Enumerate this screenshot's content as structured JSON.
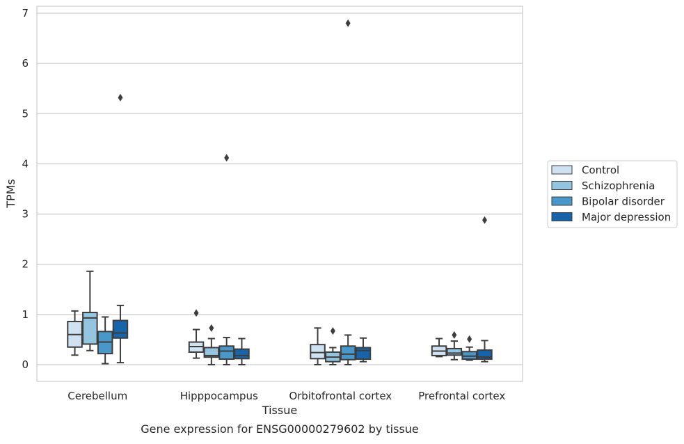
{
  "chart_data": {
    "type": "box",
    "title": "",
    "caption": "Gene expression for ENSG00000279602 by tissue",
    "xlabel": "Tissue",
    "ylabel": "TPMs",
    "ylim": [
      -0.32,
      7.15
    ],
    "yticks": [
      0,
      1,
      2,
      3,
      4,
      5,
      6,
      7
    ],
    "grid": true,
    "legend_position": "right",
    "categories": [
      "Cerebellum",
      "Hipppocampus",
      "Orbitofrontal cortex",
      "Prefrontal cortex"
    ],
    "series": [
      {
        "name": "Control",
        "color": "#d0e1f2",
        "boxes": [
          {
            "whislo": 0.19,
            "q1": 0.35,
            "med": 0.6,
            "q3": 0.86,
            "whishi": 1.07,
            "fliers": []
          },
          {
            "whislo": 0.13,
            "q1": 0.25,
            "med": 0.36,
            "q3": 0.45,
            "whishi": 0.7,
            "fliers": [
              1.03
            ]
          },
          {
            "whislo": 0.0,
            "q1": 0.12,
            "med": 0.24,
            "q3": 0.4,
            "whishi": 0.73,
            "fliers": []
          },
          {
            "whislo": 0.16,
            "q1": 0.18,
            "med": 0.27,
            "q3": 0.37,
            "whishi": 0.52,
            "fliers": []
          }
        ]
      },
      {
        "name": "Schizophrenia",
        "color": "#94c4df",
        "boxes": [
          {
            "whislo": 0.28,
            "q1": 0.41,
            "med": 0.93,
            "q3": 1.04,
            "whishi": 1.86,
            "fliers": []
          },
          {
            "whislo": 0.0,
            "q1": 0.15,
            "med": 0.18,
            "q3": 0.34,
            "whishi": 0.52,
            "fliers": [
              0.73
            ]
          },
          {
            "whislo": 0.0,
            "q1": 0.06,
            "med": 0.15,
            "q3": 0.25,
            "whishi": 0.34,
            "fliers": [
              0.67
            ]
          },
          {
            "whislo": 0.1,
            "q1": 0.19,
            "med": 0.23,
            "q3": 0.32,
            "whishi": 0.47,
            "fliers": [
              0.59
            ]
          }
        ]
      },
      {
        "name": "Bipolar disorder",
        "color": "#4a98c9",
        "boxes": [
          {
            "whislo": 0.02,
            "q1": 0.22,
            "med": 0.45,
            "q3": 0.66,
            "whishi": 0.95,
            "fliers": []
          },
          {
            "whislo": 0.0,
            "q1": 0.11,
            "med": 0.27,
            "q3": 0.37,
            "whishi": 0.54,
            "fliers": [
              4.12
            ]
          },
          {
            "whislo": 0.0,
            "q1": 0.1,
            "med": 0.21,
            "q3": 0.37,
            "whishi": 0.59,
            "fliers": [
              6.8
            ]
          },
          {
            "whislo": 0.09,
            "q1": 0.11,
            "med": 0.17,
            "q3": 0.26,
            "whishi": 0.35,
            "fliers": [
              0.51
            ]
          }
        ]
      },
      {
        "name": "Major depression",
        "color": "#1764ab",
        "boxes": [
          {
            "whislo": 0.04,
            "q1": 0.53,
            "med": 0.63,
            "q3": 0.88,
            "whishi": 1.18,
            "fliers": [
              5.32
            ]
          },
          {
            "whislo": 0.0,
            "q1": 0.12,
            "med": 0.18,
            "q3": 0.31,
            "whishi": 0.52,
            "fliers": []
          },
          {
            "whislo": 0.06,
            "q1": 0.11,
            "med": 0.28,
            "q3": 0.34,
            "whishi": 0.53,
            "fliers": []
          },
          {
            "whislo": 0.06,
            "q1": 0.11,
            "med": 0.15,
            "q3": 0.29,
            "whishi": 0.48,
            "fliers": [
              2.88
            ]
          }
        ]
      }
    ]
  }
}
